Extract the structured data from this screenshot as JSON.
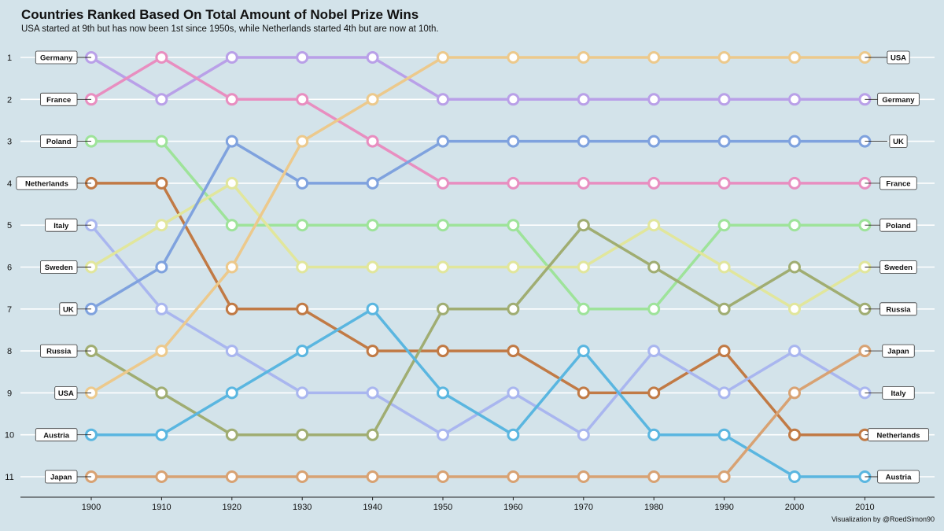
{
  "title": "Countries Ranked Based On Total Amount of Nobel Prize Wins",
  "subtitle": "USA started at 9th but has now been 1st since 1950s, while Netherlands started 4th but are now at 10th.",
  "caption": "Visualization by @RoedSimon90",
  "chart_data": {
    "type": "line",
    "subtype": "bump",
    "x": [
      1900,
      1910,
      1920,
      1930,
      1940,
      1950,
      1960,
      1970,
      1980,
      1990,
      2000,
      2010
    ],
    "y_ticks": [
      1,
      2,
      3,
      4,
      5,
      6,
      7,
      8,
      9,
      10,
      11
    ],
    "y_reversed": true,
    "grid": "horizontal",
    "series": [
      {
        "name": "Germany",
        "color": "#b9a0e8",
        "values": [
          1,
          2,
          1,
          1,
          1,
          2,
          2,
          2,
          2,
          2,
          2,
          2
        ]
      },
      {
        "name": "France",
        "color": "#e88ec0",
        "values": [
          2,
          1,
          2,
          2,
          3,
          4,
          4,
          4,
          4,
          4,
          4,
          4
        ]
      },
      {
        "name": "Poland",
        "color": "#9ee39a",
        "values": [
          3,
          3,
          5,
          5,
          5,
          5,
          5,
          7,
          7,
          5,
          5,
          5
        ]
      },
      {
        "name": "Netherlands",
        "color": "#c17a45",
        "values": [
          4,
          4,
          7,
          7,
          8,
          8,
          8,
          9,
          9,
          8,
          10,
          10
        ]
      },
      {
        "name": "Italy",
        "color": "#a9b6ef",
        "values": [
          5,
          7,
          8,
          9,
          9,
          10,
          9,
          10,
          8,
          9,
          8,
          9
        ]
      },
      {
        "name": "Sweden",
        "color": "#e1e69c",
        "values": [
          6,
          5,
          4,
          6,
          6,
          6,
          6,
          6,
          5,
          6,
          7,
          6
        ]
      },
      {
        "name": "UK",
        "color": "#7fa2de",
        "values": [
          7,
          6,
          3,
          4,
          4,
          3,
          3,
          3,
          3,
          3,
          3,
          3
        ]
      },
      {
        "name": "Russia",
        "color": "#a0ad72",
        "values": [
          8,
          9,
          10,
          10,
          10,
          7,
          7,
          5,
          6,
          7,
          6,
          7
        ]
      },
      {
        "name": "USA",
        "color": "#ecc98c",
        "values": [
          9,
          8,
          6,
          3,
          2,
          1,
          1,
          1,
          1,
          1,
          1,
          1
        ]
      },
      {
        "name": "Austria",
        "color": "#5ab6e0",
        "values": [
          10,
          10,
          9,
          8,
          7,
          9,
          10,
          8,
          10,
          10,
          11,
          11
        ]
      },
      {
        "name": "Japan",
        "color": "#d8a273",
        "values": [
          11,
          11,
          11,
          11,
          11,
          11,
          11,
          11,
          11,
          11,
          9,
          8
        ]
      }
    ]
  }
}
